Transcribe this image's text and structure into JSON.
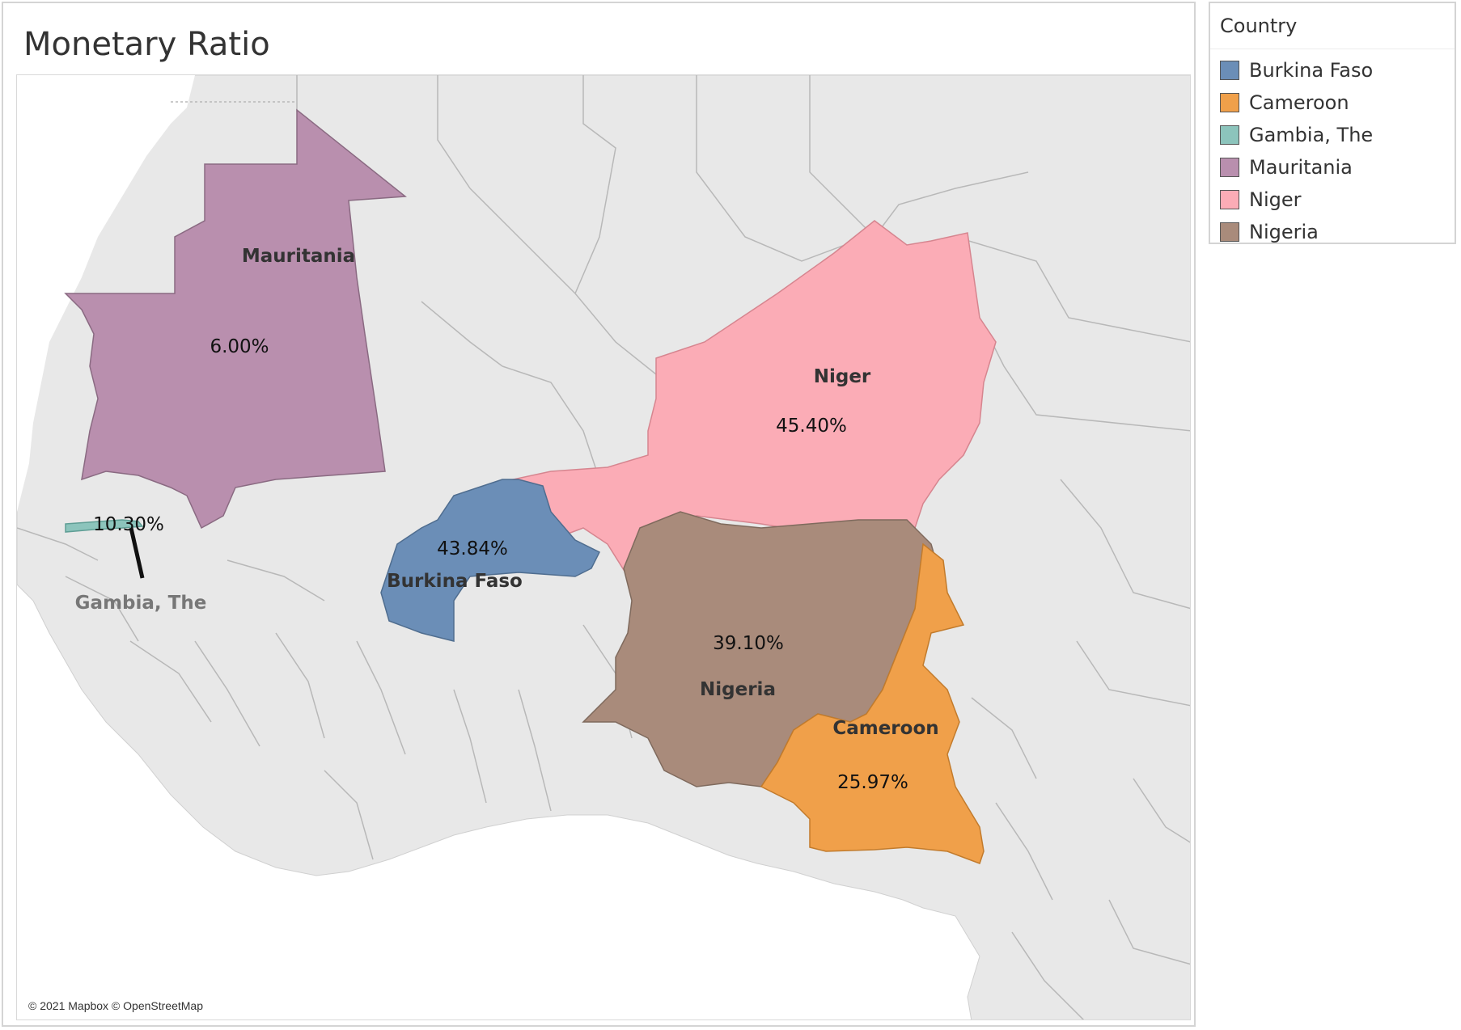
{
  "title": "Monetary Ratio",
  "attribution": "© 2021 Mapbox © OpenStreetMap",
  "legend": {
    "title": "Country",
    "items": [
      {
        "label": "Burkina Faso",
        "color": "#6b8eb7"
      },
      {
        "label": "Cameroon",
        "color": "#f0a04a"
      },
      {
        "label": "Gambia, The",
        "color": "#8cc4bc"
      },
      {
        "label": "Mauritania",
        "color": "#b98fae"
      },
      {
        "label": "Niger",
        "color": "#fbacb6"
      },
      {
        "label": "Nigeria",
        "color": "#a98b7b"
      }
    ]
  },
  "countries": {
    "mauritania": {
      "name": "Mauritania",
      "value": "6.00%",
      "color": "#b98fae"
    },
    "niger": {
      "name": "Niger",
      "value": "45.40%",
      "color": "#fbacb6"
    },
    "burkina_faso": {
      "name": "Burkina Faso",
      "value": "43.84%",
      "color": "#6b8eb7"
    },
    "nigeria": {
      "name": "Nigeria",
      "value": "39.10%",
      "color": "#a98b7b"
    },
    "cameroon": {
      "name": "Cameroon",
      "value": "25.97%",
      "color": "#f0a04a"
    },
    "gambia": {
      "name": "Gambia, The",
      "value": "10.30%",
      "color": "#8cc4bc"
    }
  },
  "colors": {
    "land": "#e8e8e8",
    "sea": "#ffffff",
    "border": "#b5b5b5"
  }
}
